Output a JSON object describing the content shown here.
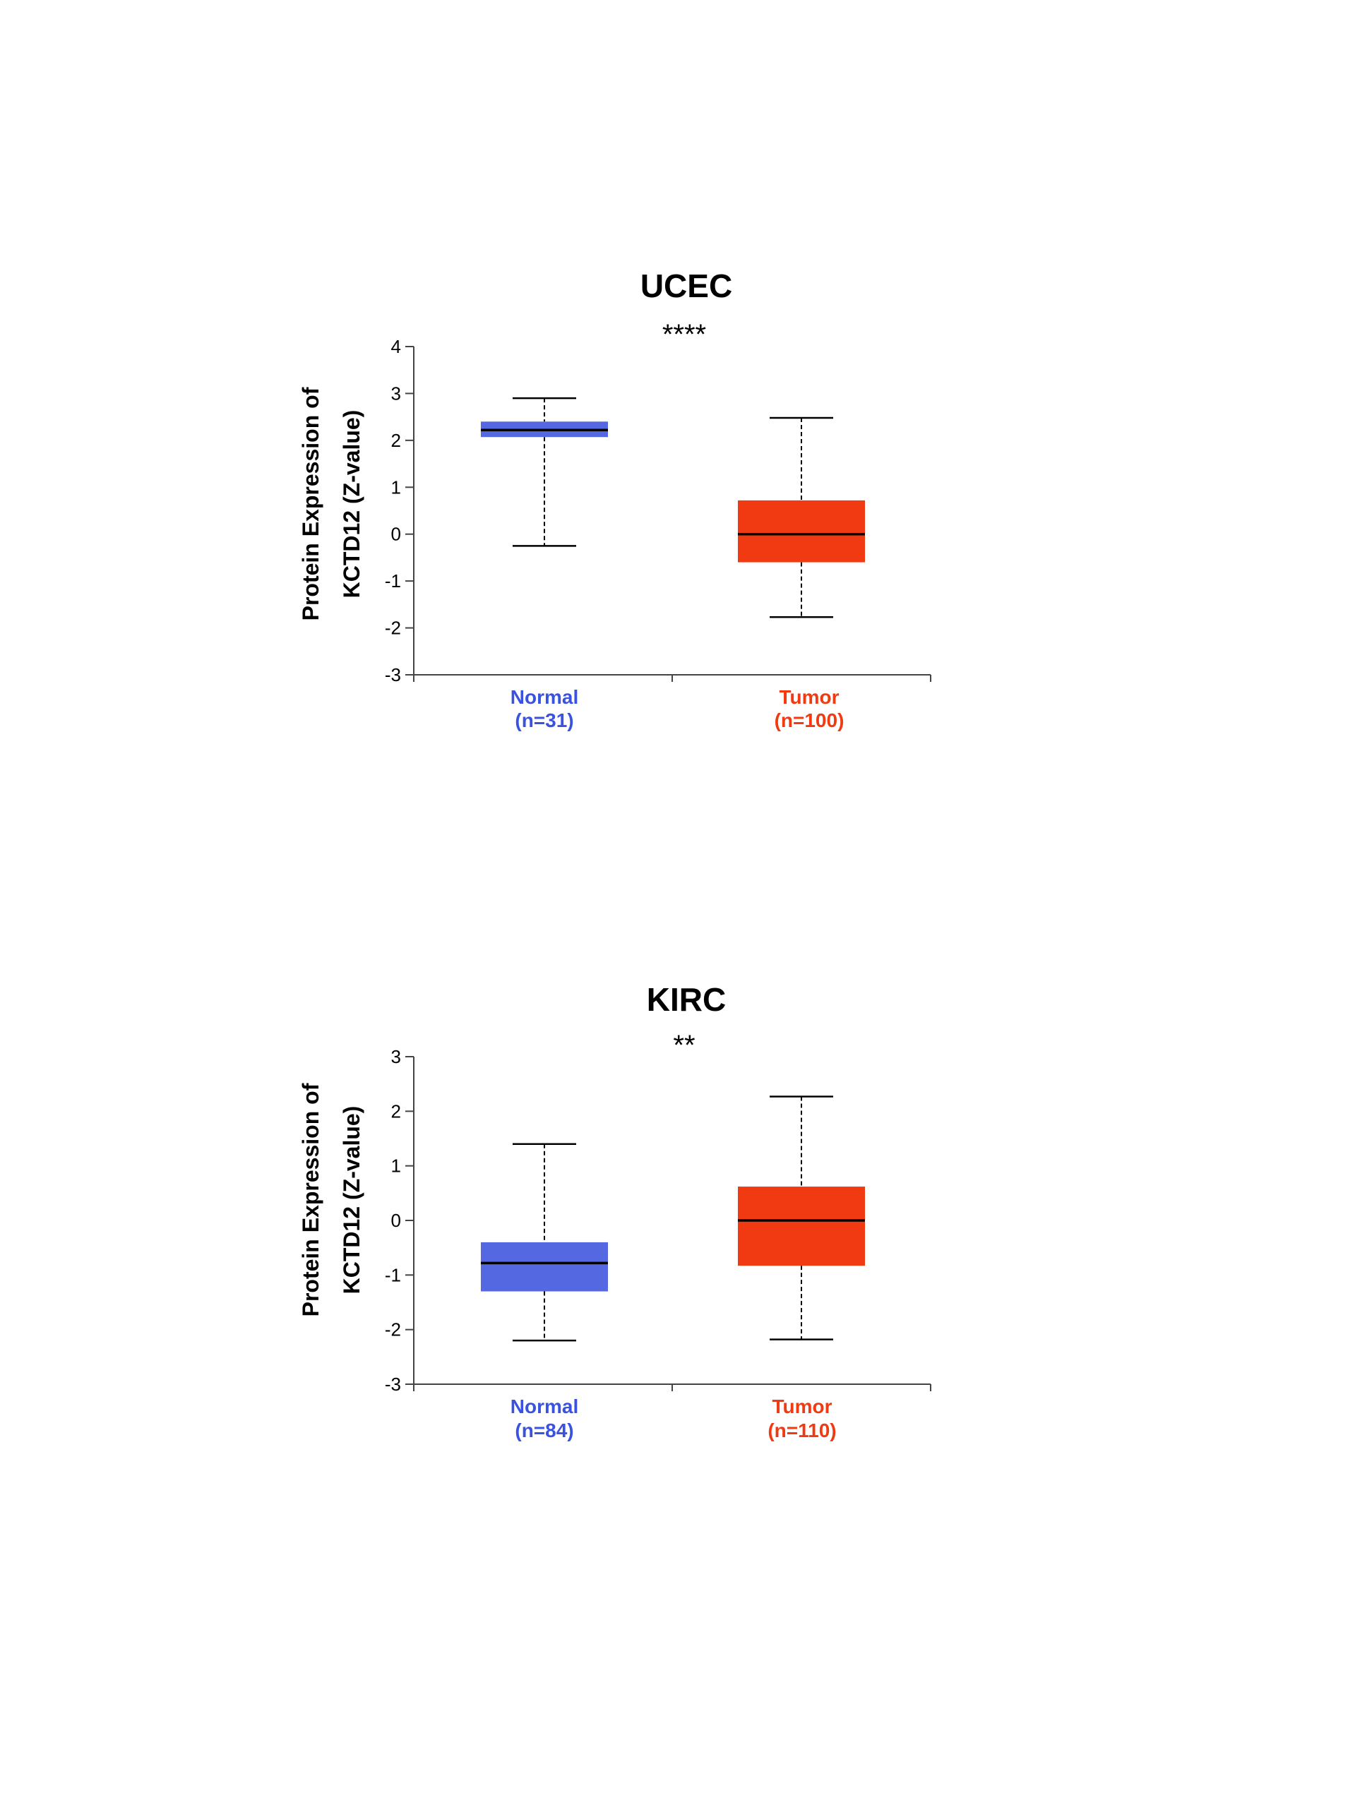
{
  "chart_data": [
    {
      "type": "box",
      "title": "UCEC",
      "significance": "****",
      "ylabel": [
        "Protein Expression of",
        "KCTD12 (Z-value)"
      ],
      "ylim": [
        -3,
        4
      ],
      "yticks": [
        4,
        3,
        2,
        1,
        0,
        -1,
        -2,
        -3
      ],
      "ytick_labels": [
        "4",
        "3",
        "2",
        "1",
        "0",
        "-1",
        "-2",
        "-3"
      ],
      "categories": [
        {
          "label": "Normal",
          "n_label": "(n=31)",
          "color": "#5468e2",
          "label_color": "#3a52e0",
          "whisker_low": -0.25,
          "q1": 2.07,
          "median": 2.22,
          "q3": 2.4,
          "whisker_high": 2.9
        },
        {
          "label": "Tumor",
          "n_label": "(n=100)",
          "color": "#f23a12",
          "label_color": "#f03a12",
          "whisker_low": -1.77,
          "q1": -0.6,
          "median": 0.0,
          "q3": 0.72,
          "whisker_high": 2.48
        }
      ]
    },
    {
      "type": "box",
      "title": "KIRC",
      "significance": "**",
      "ylabel": [
        "Protein Expression of",
        "KCTD12 (Z-value)"
      ],
      "ylim": [
        -3,
        3
      ],
      "yticks": [
        3,
        2,
        1,
        0,
        -1,
        -2,
        -3
      ],
      "ytick_labels": [
        "3",
        "2",
        "1",
        "0",
        "-1",
        "-2",
        "-3"
      ],
      "categories": [
        {
          "label": "Normal",
          "n_label": "(n=84)",
          "color": "#5468e2",
          "label_color": "#3a52e0",
          "whisker_low": -2.2,
          "q1": -1.3,
          "median": -0.78,
          "q3": -0.4,
          "whisker_high": 1.4
        },
        {
          "label": "Tumor",
          "n_label": "(n=110)",
          "color": "#f23a12",
          "label_color": "#f03a12",
          "whisker_low": -2.18,
          "q1": -0.83,
          "median": 0.0,
          "q3": 0.62,
          "whisker_high": 2.27
        }
      ]
    }
  ]
}
